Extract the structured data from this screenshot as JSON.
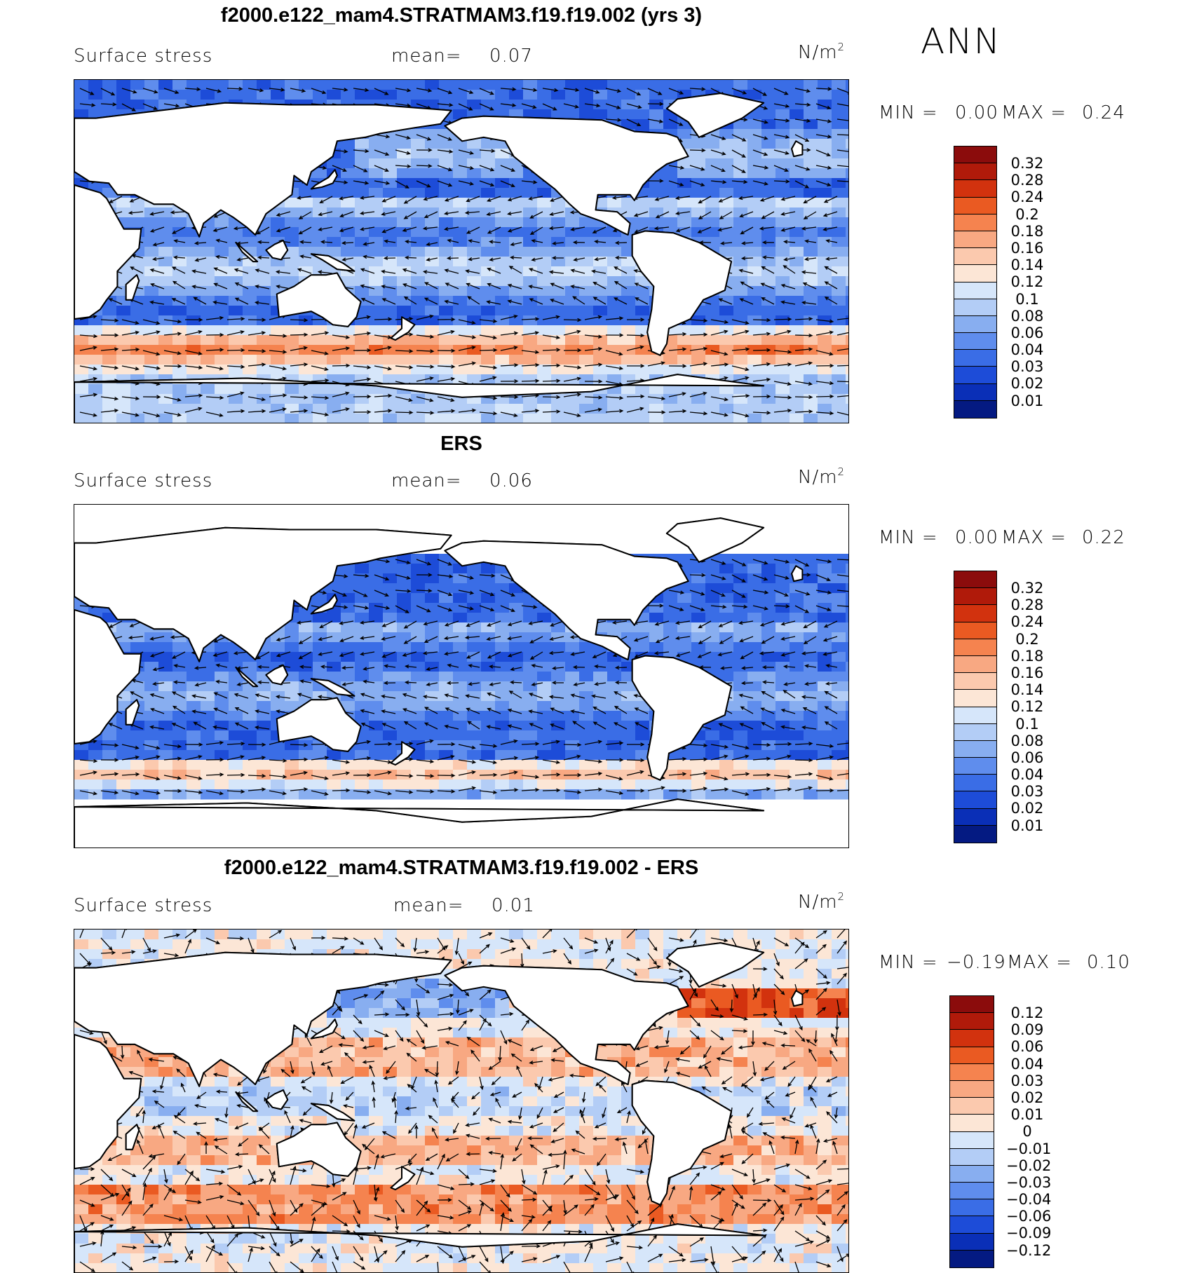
{
  "season": "ANN",
  "panels": [
    {
      "id": "model",
      "title": "f2000.e122_mam4.STRATMAM3.f19.f19.002 (yrs 3)",
      "variable": "Surface stress",
      "mean_label": "mean=",
      "mean_value": "0.07",
      "units": "N/m",
      "units_exp": "2",
      "min_label": "MIN =",
      "min_value": "0.00",
      "max_label": "MAX =",
      "max_value": "0.24",
      "levels": [
        "0.32",
        "0.28",
        "0.24",
        "0.2",
        "0.18",
        "0.16",
        "0.14",
        "0.12",
        "0.1",
        "0.08",
        "0.06",
        "0.04",
        "0.03",
        "0.02",
        "0.01"
      ],
      "colors": [
        "#8b0c0c",
        "#b01a0a",
        "#d2320e",
        "#ea5a22",
        "#f5834f",
        "#f8a882",
        "#fbc9ae",
        "#fce6d6",
        "#d6e6fa",
        "#b3cdf6",
        "#88aef0",
        "#5f8ded",
        "#3a6de6",
        "#1d4cd8",
        "#0a2fb7",
        "#041a82"
      ],
      "stats": {
        "min": 0.0,
        "max": 0.24,
        "mean": 0.07
      }
    },
    {
      "id": "obs",
      "title": "ERS",
      "variable": "Surface stress",
      "mean_label": "mean=",
      "mean_value": "0.06",
      "units": "N/m",
      "units_exp": "2",
      "min_label": "MIN =",
      "min_value": "0.00",
      "max_label": "MAX =",
      "max_value": "0.22",
      "levels": [
        "0.32",
        "0.28",
        "0.24",
        "0.2",
        "0.18",
        "0.16",
        "0.14",
        "0.12",
        "0.1",
        "0.08",
        "0.06",
        "0.04",
        "0.03",
        "0.02",
        "0.01"
      ],
      "colors": [
        "#8b0c0c",
        "#b01a0a",
        "#d2320e",
        "#ea5a22",
        "#f5834f",
        "#f8a882",
        "#fbc9ae",
        "#fce6d6",
        "#d6e6fa",
        "#b3cdf6",
        "#88aef0",
        "#5f8ded",
        "#3a6de6",
        "#1d4cd8",
        "#0a2fb7",
        "#041a82"
      ],
      "stats": {
        "min": 0.0,
        "max": 0.22,
        "mean": 0.06
      }
    },
    {
      "id": "diff",
      "title": "f2000.e122_mam4.STRATMAM3.f19.f19.002 - ERS",
      "variable": "Surface stress",
      "mean_label": "mean=",
      "mean_value": "0.01",
      "units": "N/m",
      "units_exp": "2",
      "min_label": "MIN =",
      "min_value": "−0.19",
      "max_label": "MAX =",
      "max_value": "0.10",
      "levels": [
        "0.12",
        "0.09",
        "0.06",
        "0.04",
        "0.03",
        "0.02",
        "0.01",
        "0",
        "−0.01",
        "−0.02",
        "−0.03",
        "−0.04",
        "−0.06",
        "−0.09",
        "−0.12"
      ],
      "colors": [
        "#8b0c0c",
        "#b01a0a",
        "#d2320e",
        "#ea5a22",
        "#f5834f",
        "#f8a882",
        "#fbc9ae",
        "#fce6d6",
        "#d6e6fa",
        "#b3cdf6",
        "#88aef0",
        "#5f8ded",
        "#3a6de6",
        "#1d4cd8",
        "#0a2fb7",
        "#041a82"
      ],
      "stats": {
        "min": -0.19,
        "max": 0.1,
        "mean": 0.01
      }
    }
  ]
}
